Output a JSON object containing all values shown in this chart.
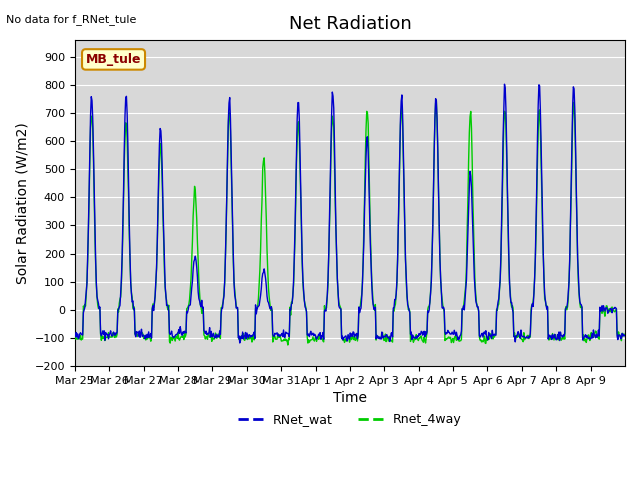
{
  "title": "Net Radiation",
  "xlabel": "Time",
  "ylabel": "Solar Radiation (W/m2)",
  "ylim": [
    -200,
    960
  ],
  "yticks": [
    -200,
    -100,
    0,
    100,
    200,
    300,
    400,
    500,
    600,
    700,
    800,
    900
  ],
  "no_data_text": "No data for f_RNet_tule",
  "annotation_text": "MB_tule",
  "x_tick_labels": [
    "Mar 25",
    "Mar 26",
    "Mar 27",
    "Mar 28",
    "Mar 29",
    "Mar 30",
    "Mar 31",
    "Apr 1",
    "Apr 2",
    "Apr 3",
    "Apr 4",
    "Apr 5",
    "Apr 6",
    "Apr 7",
    "Apr 8",
    "Apr 9"
  ],
  "blue_color": "#0000CD",
  "green_color": "#00CC00",
  "bg_color": "#D8D8D8",
  "legend_entries": [
    "RNet_wat",
    "Rnet_4way"
  ],
  "title_fontsize": 13,
  "label_fontsize": 10,
  "blue_peaks": [
    760,
    770,
    650,
    190,
    750,
    140,
    750,
    780,
    620,
    760,
    760,
    480,
    800,
    800,
    800,
    0
  ],
  "green_peaks": [
    700,
    680,
    590,
    430,
    710,
    550,
    670,
    700,
    720,
    720,
    750,
    710,
    720,
    710,
    730,
    0
  ]
}
